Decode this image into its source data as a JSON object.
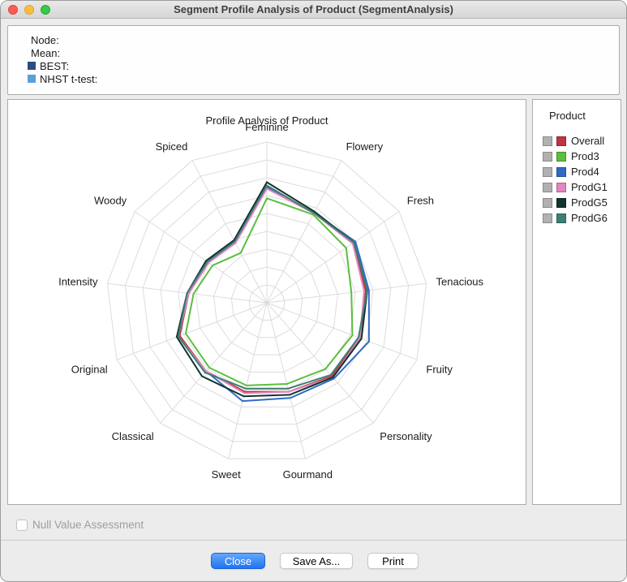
{
  "window": {
    "title": "Segment Profile Analysis of Product (SegmentAnalysis)"
  },
  "info_panel": {
    "node_label": "Node:",
    "mean_label": "Mean:",
    "best_label": "BEST:",
    "nhst_label": "NHST t-test:",
    "best_color": "#2C4D7E",
    "nhst_color": "#57A0DC"
  },
  "legend": {
    "title": "Product"
  },
  "bottom": {
    "checkbox_label": "Null Value Assessment",
    "close_label": "Close",
    "save_as_label": "Save As...",
    "print_label": "Print"
  },
  "chart_data": {
    "type": "radar",
    "title": "Profile Analysis of Product",
    "axes": [
      "Feminine",
      "Flowery",
      "Fresh",
      "Tenacious",
      "Fruity",
      "Personality",
      "Gourmand",
      "Sweet",
      "Classical",
      "Original",
      "Intensity",
      "Woody",
      "Spiced"
    ],
    "scale": [
      0,
      1
    ],
    "grid_rings": 9,
    "grid_color": "#DCDCDC",
    "legend_position": "right-panel",
    "series": [
      {
        "name": "Overall",
        "color": "#C13440",
        "values": [
          0.71,
          0.63,
          0.65,
          0.62,
          0.62,
          0.61,
          0.57,
          0.57,
          0.57,
          0.58,
          0.49,
          0.44,
          0.43
        ]
      },
      {
        "name": "Prod3",
        "color": "#5CBE3F",
        "values": [
          0.65,
          0.62,
          0.6,
          0.53,
          0.57,
          0.55,
          0.52,
          0.53,
          0.54,
          0.54,
          0.46,
          0.41,
          0.35
        ]
      },
      {
        "name": "Prod4",
        "color": "#2F6BC6",
        "values": [
          0.72,
          0.63,
          0.67,
          0.64,
          0.68,
          0.63,
          0.61,
          0.63,
          0.57,
          0.59,
          0.49,
          0.45,
          0.43
        ]
      },
      {
        "name": "ProdG1",
        "color": "#E287BF",
        "values": [
          0.71,
          0.63,
          0.65,
          0.61,
          0.62,
          0.62,
          0.57,
          0.58,
          0.57,
          0.59,
          0.49,
          0.44,
          0.42
        ]
      },
      {
        "name": "ProdG5",
        "color": "#12332E",
        "values": [
          0.75,
          0.64,
          0.66,
          0.63,
          0.63,
          0.62,
          0.59,
          0.6,
          0.61,
          0.6,
          0.5,
          0.46,
          0.44
        ]
      },
      {
        "name": "ProdG6",
        "color": "#3B7F75",
        "values": [
          0.73,
          0.63,
          0.66,
          0.63,
          0.61,
          0.6,
          0.55,
          0.55,
          0.58,
          0.59,
          0.5,
          0.45,
          0.43
        ]
      }
    ]
  }
}
